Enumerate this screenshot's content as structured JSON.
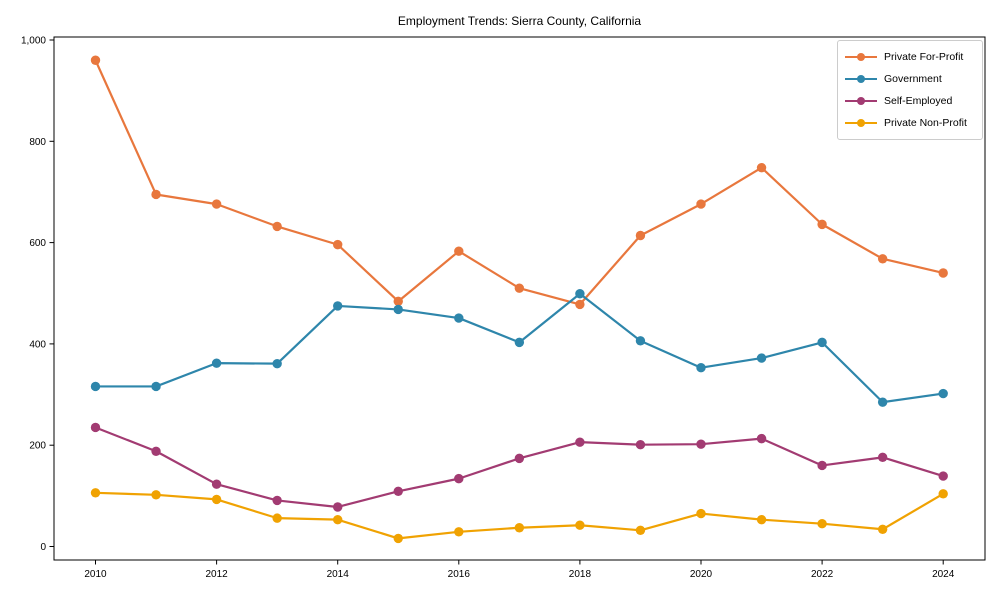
{
  "chart_data": {
    "type": "line",
    "title": "Employment Trends: Sierra County, California",
    "xlabel": "",
    "ylabel": "",
    "x": [
      2010,
      2011,
      2012,
      2013,
      2014,
      2015,
      2016,
      2017,
      2018,
      2019,
      2020,
      2021,
      2022,
      2023,
      2024
    ],
    "series": [
      {
        "name": "Private For-Profit",
        "color": "#E8773D",
        "values": [
          960,
          695,
          676,
          632,
          596,
          484,
          583,
          510,
          478,
          614,
          676,
          748,
          636,
          568,
          540
        ]
      },
      {
        "name": "Government",
        "color": "#2E86AB",
        "values": [
          316,
          316,
          362,
          361,
          475,
          468,
          451,
          403,
          499,
          406,
          353,
          372,
          403,
          285,
          302
        ]
      },
      {
        "name": "Self-Employed",
        "color": "#A23B72",
        "values": [
          235,
          188,
          123,
          91,
          78,
          109,
          134,
          174,
          206,
          201,
          202,
          213,
          160,
          176,
          139
        ]
      },
      {
        "name": "Private Non-Profit",
        "color": "#F0A202",
        "values": [
          106,
          102,
          93,
          56,
          53,
          16,
          29,
          37,
          42,
          32,
          65,
          53,
          45,
          34,
          104
        ]
      }
    ],
    "ylim": [
      0,
      1000
    ],
    "yticks": [
      0,
      200,
      400,
      600,
      800,
      1000
    ],
    "ytick_labels": [
      "0",
      "200",
      "400",
      "600",
      "800",
      "1,000"
    ],
    "xticks": [
      2010,
      2012,
      2014,
      2016,
      2018,
      2020,
      2022,
      2024
    ],
    "legend_position": "upper right",
    "grid": false,
    "frame": "box"
  }
}
